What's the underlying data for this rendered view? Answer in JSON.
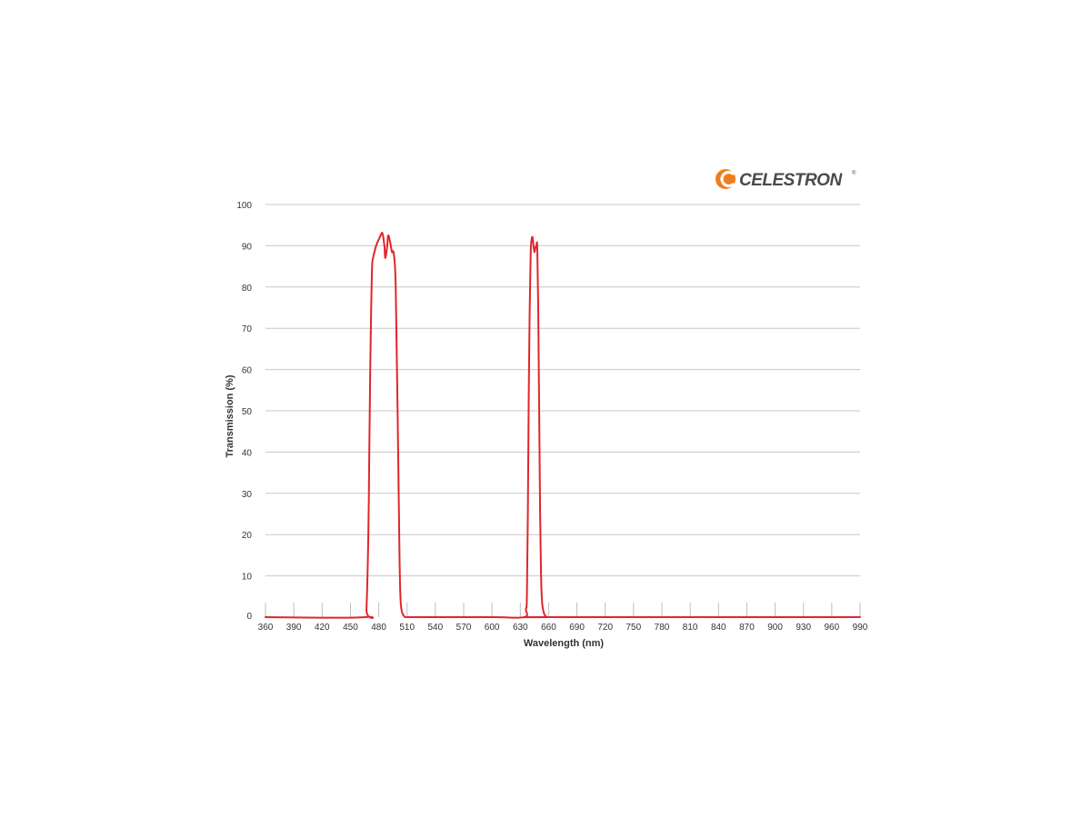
{
  "logo": {
    "text": "CELESTRON",
    "mark": "®",
    "icon": "celestron-swoosh-icon",
    "color": "#4a4a4a",
    "accent": "#f07d1e"
  },
  "chart_data": {
    "type": "line",
    "title": "",
    "xlabel": "Wavelength (nm)",
    "ylabel": "Transmission (%)",
    "xlim": [
      360,
      990
    ],
    "ylim": [
      0,
      100
    ],
    "xticks": [
      360,
      390,
      420,
      450,
      480,
      510,
      540,
      570,
      600,
      630,
      660,
      690,
      720,
      750,
      780,
      810,
      840,
      870,
      900,
      930,
      960,
      990
    ],
    "yticks": [
      0,
      10,
      20,
      30,
      40,
      50,
      60,
      70,
      80,
      90,
      100
    ],
    "grid": "horizontal",
    "legend": "none",
    "line_color": "#e0262b",
    "series": [
      {
        "x": [
          360,
          465,
          467,
          469,
          470,
          471,
          472,
          473,
          474,
          476,
          478,
          480,
          482,
          484,
          486,
          487,
          489,
          490,
          492,
          494,
          496,
          498,
          500,
          502,
          503,
          504,
          505,
          506,
          507,
          508,
          510,
          520,
          600,
          634,
          636,
          637,
          638,
          639,
          640,
          641,
          642,
          643,
          644,
          645,
          646,
          647,
          648,
          649,
          650,
          651,
          652,
          653,
          654,
          655,
          656,
          657,
          658,
          660,
          990
        ],
        "y": [
          0,
          0,
          2,
          20,
          40,
          60,
          75,
          85,
          87,
          89,
          90.5,
          91.5,
          92.5,
          93,
          90,
          87,
          90,
          92.5,
          91,
          88.5,
          88,
          80,
          50,
          15,
          5,
          2,
          1,
          0.5,
          0.2,
          0,
          0,
          0,
          0,
          0,
          2,
          5,
          25,
          55,
          75,
          88,
          91.5,
          92,
          90,
          88.5,
          89.5,
          90,
          89.5,
          75,
          50,
          25,
          10,
          4,
          2,
          1,
          0.5,
          0.2,
          0,
          0,
          0
        ]
      }
    ]
  }
}
